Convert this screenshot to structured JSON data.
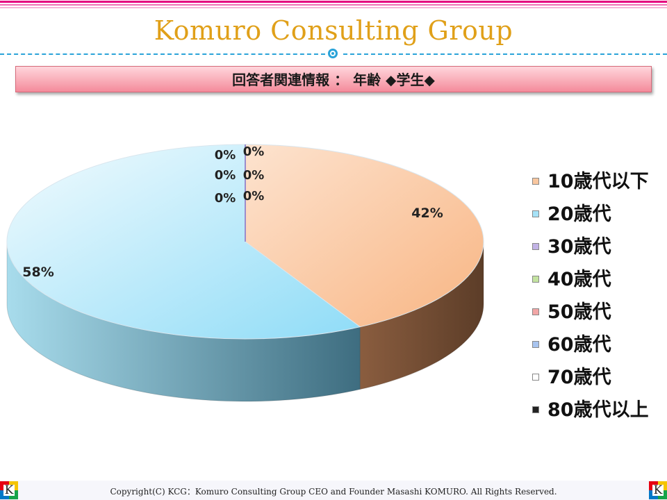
{
  "header": {
    "brand": "Komuro Consulting Group"
  },
  "slide": {
    "title": "回答者関連情報 ： 年齢 ◆学生◆"
  },
  "chart_data": {
    "type": "pie",
    "title": "",
    "categories": [
      "10歳代以下",
      "20歳代",
      "30歳代",
      "40歳代",
      "50歳代",
      "60歳代",
      "70歳代",
      "80歳代以上"
    ],
    "values": [
      42,
      58,
      0,
      0,
      0,
      0,
      0,
      0
    ],
    "data_labels": [
      "42%",
      "58%",
      "0%",
      "0%",
      "0%",
      "0%",
      "0%",
      "0%"
    ],
    "colors": [
      "#f9c79f",
      "#a6e2f7",
      "#c2b3e6",
      "#c3e3a0",
      "#f2a6a6",
      "#a8c4ef",
      "#ffffff",
      "#222222"
    ],
    "legend_position": "right"
  },
  "footer": {
    "copyright": "Copyright(C)  KCG：Komuro Consulting Group   CEO and Founder  Masashi KOMURO. All Rights Reserved."
  },
  "logo": {
    "letter": "K"
  }
}
